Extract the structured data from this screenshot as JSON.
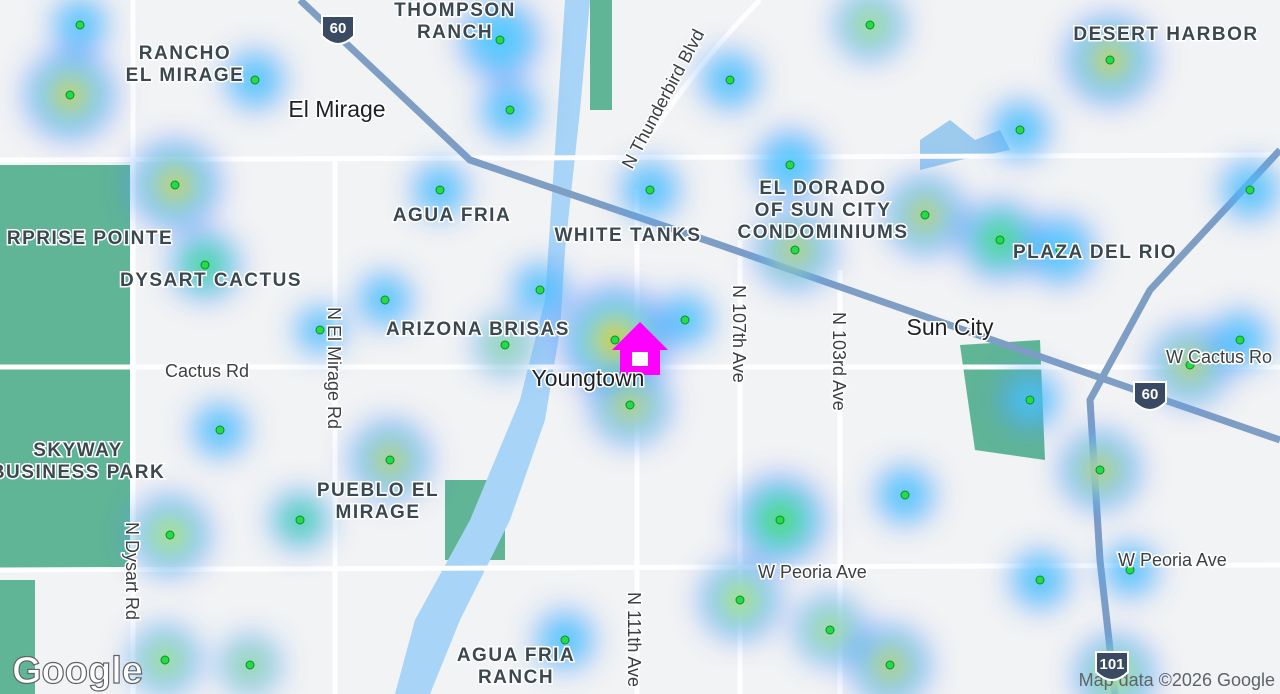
{
  "places": [
    {
      "lines": [
        "THOMPSON",
        "RANCH"
      ]
    },
    {
      "lines": [
        "RANCHO",
        "EL MIRAGE"
      ]
    },
    {
      "lines": [
        "AGUA FRIA"
      ]
    },
    {
      "lines": [
        "RPRISE POINTE"
      ]
    },
    {
      "lines": [
        "DYSART CACTUS"
      ]
    },
    {
      "lines": [
        "ARIZONA BRISAS"
      ]
    },
    {
      "lines": [
        "SKYWAY",
        "BUSINESS PARK"
      ]
    },
    {
      "lines": [
        "PUEBLO EL",
        "MIRAGE"
      ]
    },
    {
      "lines": [
        "AGUA FRIA",
        "RANCH"
      ]
    },
    {
      "lines": [
        "WHITE TANKS"
      ]
    },
    {
      "lines": [
        "EL DORADO",
        "OF SUN CITY",
        "CONDOMINIUMS"
      ]
    },
    {
      "lines": [
        "PLAZA DEL RIO"
      ]
    },
    {
      "lines": [
        "DESERT HARBOR"
      ]
    }
  ],
  "cities": [
    "El Mirage",
    "Youngtown",
    "Sun City"
  ],
  "roads": [
    "Cactus Rd",
    "N El Mirage Rd",
    "N Dysart Rd",
    "N 111th Ave",
    "N 107th Ave",
    "N 103rd Ave",
    "N Thunderbird Blvd",
    "W Cactus Ro",
    "W Peoria Ave",
    "W Peoria Ave"
  ],
  "shields": [
    "60",
    "60",
    "101"
  ],
  "attribution": {
    "logo": "Google",
    "text": "Map data ©2026 Google"
  }
}
